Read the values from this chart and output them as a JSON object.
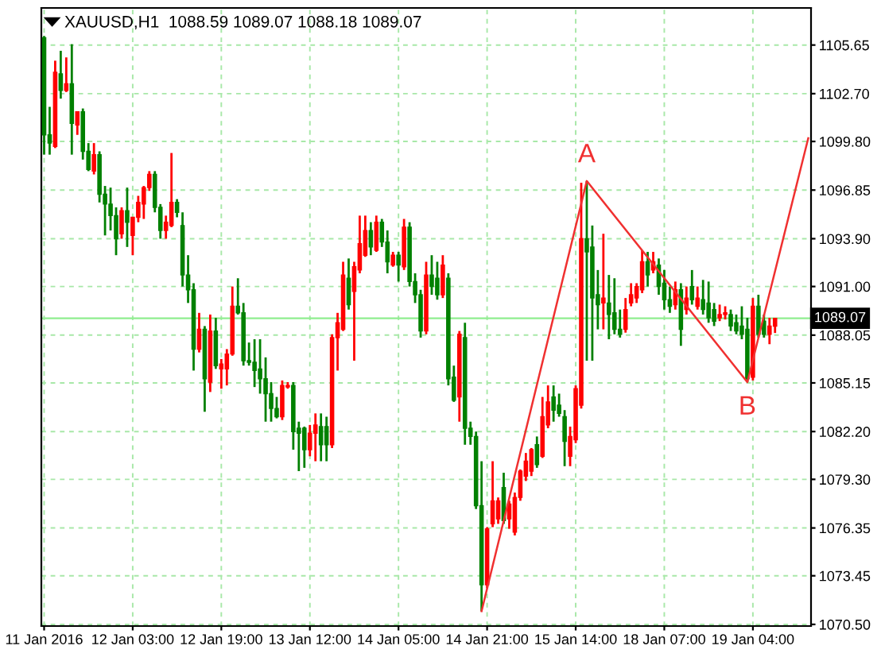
{
  "chart_data": {
    "type": "candlestick",
    "title": "XAUUSD,H1  1088.59 1089.07 1088.18 1089.07",
    "categories": [
      "11 Jan 2016",
      null,
      null,
      null,
      null,
      null,
      null,
      null,
      null,
      null,
      null,
      null,
      null,
      null,
      null,
      null,
      "12 Jan 03:00",
      null,
      null,
      null,
      null,
      null,
      null,
      null,
      null,
      null,
      null,
      null,
      null,
      null,
      null,
      null,
      "12 Jan 19:00",
      null,
      null,
      null,
      null,
      null,
      null,
      null,
      null,
      null,
      null,
      null,
      null,
      null,
      null,
      null,
      "13 Jan 12:00",
      null,
      null,
      null,
      null,
      null,
      null,
      null,
      null,
      null,
      null,
      null,
      null,
      null,
      null,
      null,
      "14 Jan 05:00",
      null,
      null,
      null,
      null,
      null,
      null,
      null,
      null,
      null,
      null,
      null,
      null,
      null,
      null,
      null,
      "14 Jan 21:00",
      null,
      null,
      null,
      null,
      null,
      null,
      null,
      null,
      null,
      null,
      null,
      null,
      null,
      null,
      null,
      "15 Jan 14:00",
      null,
      null,
      null,
      null,
      null,
      null,
      null,
      null,
      null,
      null,
      null,
      null,
      null,
      null,
      null,
      "18 Jan 07:00",
      null,
      null,
      null,
      null,
      null,
      null,
      null,
      null,
      null,
      null,
      null,
      null,
      null,
      null,
      null,
      "19 Jan 04:00",
      null,
      null,
      null,
      null,
      null,
      null,
      null,
      null,
      null,
      null
    ],
    "series": [
      {
        "type": "candlestick",
        "ohlc": [
          [
            1106.1,
            1106.2,
            1099.0,
            1100.2
          ],
          [
            1100.2,
            1101.9,
            1099.0,
            1099.7
          ],
          [
            1099.5,
            1104.7,
            1099.4,
            1104.0
          ],
          [
            1103.9,
            1105.3,
            1102.4,
            1102.9
          ],
          [
            1102.9,
            1104.9,
            1102.8,
            1103.3
          ],
          [
            1103.3,
            1105.7,
            1099.0,
            1100.9
          ],
          [
            1100.8,
            1101.6,
            1100.2,
            1101.6
          ],
          [
            1101.6,
            1101.8,
            1098.7,
            1099.2
          ],
          [
            1099.2,
            1099.7,
            1098.0,
            1098.1
          ],
          [
            1098.0,
            1099.7,
            1097.8,
            1099.0
          ],
          [
            1099.0,
            1099.2,
            1096.1,
            1096.6
          ],
          [
            1096.6,
            1097.1,
            1094.1,
            1096.0
          ],
          [
            1096.0,
            1097.0,
            1094.4,
            1095.3
          ],
          [
            1095.3,
            1095.8,
            1092.9,
            1093.9
          ],
          [
            1094.2,
            1095.8,
            1093.9,
            1095.6
          ],
          [
            1095.6,
            1097.0,
            1093.4,
            1094.9
          ],
          [
            1094.1,
            1095.2,
            1092.9,
            1095.2
          ],
          [
            1095.2,
            1096.5,
            1094.9,
            1096.1
          ],
          [
            1096.0,
            1097.1,
            1095.1,
            1097.0
          ],
          [
            1097.0,
            1098.0,
            1096.8,
            1097.8
          ],
          [
            1097.8,
            1098.0,
            1095.5,
            1095.8
          ],
          [
            1095.8,
            1096.0,
            1093.9,
            1094.4
          ],
          [
            1094.4,
            1095.3,
            1093.9,
            1094.9
          ],
          [
            1094.7,
            1099.1,
            1094.6,
            1096.1
          ],
          [
            1096.1,
            1096.3,
            1095.2,
            1095.5
          ],
          [
            1094.7,
            1095.5,
            1091.0,
            1091.7
          ],
          [
            1091.7,
            1092.9,
            1090.0,
            1090.8
          ],
          [
            1090.8,
            1091.2,
            1085.9,
            1087.2
          ],
          [
            1087.2,
            1089.4,
            1087.0,
            1088.4
          ],
          [
            1088.4,
            1088.6,
            1083.4,
            1085.4
          ],
          [
            1085.2,
            1089.3,
            1084.6,
            1088.3
          ],
          [
            1088.3,
            1089.1,
            1086.0,
            1086.2
          ],
          [
            1086.0,
            1086.6,
            1084.8,
            1086.3
          ],
          [
            1086.0,
            1087.2,
            1085.0,
            1086.9
          ],
          [
            1086.9,
            1091.0,
            1086.8,
            1089.8
          ],
          [
            1089.8,
            1091.5,
            1089.3,
            1089.4
          ],
          [
            1089.4,
            1090.0,
            1086.2,
            1086.5
          ],
          [
            1086.5,
            1087.6,
            1086.2,
            1086.4
          ],
          [
            1086.4,
            1087.8,
            1084.9,
            1085.9
          ],
          [
            1086.0,
            1087.8,
            1084.5,
            1085.4
          ],
          [
            1085.4,
            1086.7,
            1082.8,
            1084.5
          ],
          [
            1084.5,
            1085.2,
            1082.8,
            1083.6
          ],
          [
            1083.6,
            1084.3,
            1083.0,
            1083.1
          ],
          [
            1083.1,
            1085.3,
            1082.9,
            1085.0
          ],
          [
            1084.9,
            1085.2,
            1084.8,
            1085.0
          ],
          [
            1085.0,
            1085.2,
            1081.1,
            1082.2
          ],
          [
            1082.4,
            1082.8,
            1079.8,
            1082.1
          ],
          [
            1082.4,
            1082.5,
            1080.0,
            1081.1
          ],
          [
            1081.1,
            1082.6,
            1080.7,
            1082.1
          ],
          [
            1082.1,
            1083.3,
            1080.4,
            1082.6
          ],
          [
            1082.5,
            1083.3,
            1080.4,
            1081.4
          ],
          [
            1082.5,
            1083.1,
            1080.4,
            1081.4
          ],
          [
            1081.4,
            1088.1,
            1081.2,
            1087.9
          ],
          [
            1087.9,
            1089.4,
            1085.9,
            1088.8
          ],
          [
            1088.4,
            1092.5,
            1088.3,
            1091.7
          ],
          [
            1091.5,
            1092.7,
            1089.6,
            1089.9
          ],
          [
            1090.7,
            1092.5,
            1086.5,
            1092.2
          ],
          [
            1092.0,
            1095.3,
            1091.8,
            1093.6
          ],
          [
            1092.9,
            1095.3,
            1092.8,
            1094.4
          ],
          [
            1094.4,
            1094.9,
            1092.9,
            1093.4
          ],
          [
            1093.2,
            1095.3,
            1093.1,
            1094.9
          ],
          [
            1094.9,
            1095.1,
            1093.4,
            1093.7
          ],
          [
            1093.7,
            1094.4,
            1091.8,
            1092.5
          ],
          [
            1092.3,
            1093.1,
            1092.2,
            1092.9
          ],
          [
            1092.9,
            1093.1,
            1091.3,
            1092.3
          ],
          [
            1092.2,
            1095.1,
            1092.0,
            1094.6
          ],
          [
            1094.6,
            1094.9,
            1091.0,
            1091.3
          ],
          [
            1091.3,
            1091.8,
            1090.0,
            1090.5
          ],
          [
            1090.5,
            1090.8,
            1087.9,
            1088.3
          ],
          [
            1088.3,
            1092.5,
            1088.1,
            1091.7
          ],
          [
            1091.7,
            1092.9,
            1090.5,
            1091.0
          ],
          [
            1091.5,
            1092.5,
            1090.2,
            1090.5
          ],
          [
            1090.5,
            1092.9,
            1090.3,
            1092.3
          ],
          [
            1091.5,
            1091.8,
            1085.0,
            1085.4
          ],
          [
            1085.5,
            1086.2,
            1084.0,
            1084.1
          ],
          [
            1084.3,
            1088.3,
            1082.8,
            1088.1
          ],
          [
            1087.9,
            1088.8,
            1081.4,
            1082.4
          ],
          [
            1082.4,
            1082.8,
            1081.4,
            1081.9
          ],
          [
            1081.9,
            1082.2,
            1077.5,
            1077.7
          ],
          [
            1077.7,
            1080.4,
            1071.3,
            1072.9
          ],
          [
            1072.9,
            1076.4,
            1072.7,
            1076.3
          ],
          [
            1076.6,
            1080.4,
            1076.4,
            1078.0
          ],
          [
            1076.9,
            1078.2,
            1076.6,
            1078.0
          ],
          [
            1078.8,
            1079.7,
            1076.6,
            1076.8
          ],
          [
            1076.9,
            1078.0,
            1076.3,
            1077.8
          ],
          [
            1076.1,
            1078.5,
            1075.9,
            1078.2
          ],
          [
            1078.2,
            1079.9,
            1078.0,
            1079.8
          ],
          [
            1079.5,
            1080.9,
            1079.2,
            1080.4
          ],
          [
            1079.8,
            1081.2,
            1079.5,
            1081.1
          ],
          [
            1081.4,
            1081.9,
            1080.0,
            1080.2
          ],
          [
            1080.7,
            1084.3,
            1080.6,
            1083.1
          ],
          [
            1082.6,
            1085.0,
            1082.4,
            1084.0
          ],
          [
            1084.3,
            1085.0,
            1082.8,
            1083.5
          ],
          [
            1083.8,
            1084.5,
            1083.1,
            1083.3
          ],
          [
            1083.1,
            1083.5,
            1080.1,
            1081.6
          ],
          [
            1080.7,
            1082.5,
            1080.1,
            1081.9
          ],
          [
            1081.7,
            1085.0,
            1081.5,
            1084.8
          ],
          [
            1083.8,
            1097.3,
            1083.6,
            1093.9
          ],
          [
            1093.9,
            1097.4,
            1086.5,
            1093.1
          ],
          [
            1093.4,
            1094.7,
            1086.5,
            1090.3
          ],
          [
            1090.5,
            1092.0,
            1088.4,
            1089.9
          ],
          [
            1090.0,
            1094.2,
            1088.4,
            1090.3
          ],
          [
            1090.0,
            1091.7,
            1087.8,
            1089.3
          ],
          [
            1089.4,
            1091.5,
            1088.1,
            1088.4
          ],
          [
            1088.4,
            1089.6,
            1087.9,
            1088.1
          ],
          [
            1088.4,
            1090.3,
            1088.2,
            1089.6
          ],
          [
            1090.0,
            1091.2,
            1089.8,
            1090.5
          ],
          [
            1090.3,
            1091.2,
            1090.0,
            1091.0
          ],
          [
            1090.8,
            1093.2,
            1090.6,
            1092.5
          ],
          [
            1092.5,
            1093.1,
            1091.0,
            1091.7
          ],
          [
            1092.0,
            1093.1,
            1091.8,
            1092.5
          ],
          [
            1092.3,
            1092.7,
            1090.5,
            1091.0
          ],
          [
            1091.2,
            1092.0,
            1089.6,
            1090.2
          ],
          [
            1090.2,
            1091.0,
            1089.4,
            1089.8
          ],
          [
            1089.9,
            1091.3,
            1089.6,
            1090.8
          ],
          [
            1090.8,
            1091.2,
            1087.4,
            1088.4
          ],
          [
            1089.6,
            1091.0,
            1089.3,
            1090.3
          ],
          [
            1091.0,
            1092.0,
            1089.9,
            1090.2
          ],
          [
            1089.8,
            1091.0,
            1089.6,
            1090.3
          ],
          [
            1090.2,
            1091.4,
            1089.3,
            1089.6
          ],
          [
            1090.0,
            1091.3,
            1088.8,
            1089.1
          ],
          [
            1089.6,
            1090.0,
            1088.6,
            1088.9
          ],
          [
            1089.1,
            1089.9,
            1088.9,
            1089.3
          ],
          [
            1089.3,
            1089.8,
            1089.0,
            1089.4
          ],
          [
            1089.3,
            1089.6,
            1088.3,
            1088.6
          ],
          [
            1088.8,
            1089.3,
            1088.1,
            1088.3
          ],
          [
            1088.6,
            1089.8,
            1087.8,
            1088.1
          ],
          [
            1088.4,
            1089.1,
            1085.2,
            1085.4
          ],
          [
            1085.5,
            1090.3,
            1085.3,
            1089.8
          ],
          [
            1089.8,
            1090.5,
            1087.9,
            1088.1
          ],
          [
            1088.9,
            1089.3,
            1087.9,
            1088.1
          ],
          [
            1088.1,
            1089.1,
            1087.5,
            1088.6
          ],
          [
            1088.59,
            1089.07,
            1088.18,
            1089.07
          ],
          null,
          null,
          null,
          null,
          null,
          null
        ],
        "colors": [
          "#008000",
          "#008000",
          "#ff0000",
          "#008000",
          "#ff0000",
          "#008000",
          "#ff0000",
          "#008000",
          "#008000",
          "#ff0000",
          "#008000",
          "#008000",
          "#008000",
          "#008000",
          "#ff0000",
          "#008000",
          "#ff0000",
          "#ff0000",
          "#ff0000",
          "#ff0000",
          "#008000",
          "#008000",
          "#ff0000",
          "#ff0000",
          "#008000",
          "#008000",
          "#008000",
          "#008000",
          "#ff0000",
          "#008000",
          "#ff0000",
          "#008000",
          "#ff0000",
          "#ff0000",
          "#ff0000",
          "#008000",
          "#008000",
          "#008000",
          "#008000",
          "#008000",
          "#008000",
          "#008000",
          "#008000",
          "#ff0000",
          "#ff0000",
          "#008000",
          "#008000",
          "#008000",
          "#ff0000",
          "#ff0000",
          "#008000",
          "#008000",
          "#ff0000",
          "#ff0000",
          "#ff0000",
          "#008000",
          "#ff0000",
          "#ff0000",
          "#ff0000",
          "#008000",
          "#ff0000",
          "#008000",
          "#008000",
          "#ff0000",
          "#008000",
          "#ff0000",
          "#008000",
          "#008000",
          "#008000",
          "#ff0000",
          "#008000",
          "#008000",
          "#ff0000",
          "#008000",
          "#008000",
          "#ff0000",
          "#008000",
          "#008000",
          "#008000",
          "#008000",
          "#ff0000",
          "#ff0000",
          "#ff0000",
          "#008000",
          "#ff0000",
          "#ff0000",
          "#ff0000",
          "#ff0000",
          "#ff0000",
          "#008000",
          "#ff0000",
          "#ff0000",
          "#008000",
          "#008000",
          "#008000",
          "#ff0000",
          "#ff0000",
          "#ff0000",
          "#008000",
          "#008000",
          "#008000",
          "#ff0000",
          "#008000",
          "#008000",
          "#008000",
          "#ff0000",
          "#ff0000",
          "#ff0000",
          "#ff0000",
          "#008000",
          "#ff0000",
          "#008000",
          "#008000",
          "#008000",
          "#ff0000",
          "#008000",
          "#ff0000",
          "#008000",
          "#ff0000",
          "#008000",
          "#008000",
          "#008000",
          "#ff0000",
          "#ff0000",
          "#008000",
          "#008000",
          "#008000",
          "#008000",
          "#ff0000",
          "#008000",
          "#008000",
          "#ff0000",
          "#ff0000",
          null,
          null,
          null,
          null,
          null,
          null
        ]
      },
      {
        "type": "line",
        "color": "#f03030",
        "values": [
          null,
          null,
          null,
          null,
          null,
          null,
          null,
          null,
          null,
          null,
          null,
          null,
          null,
          null,
          null,
          null,
          null,
          null,
          null,
          null,
          null,
          null,
          null,
          null,
          null,
          null,
          null,
          null,
          null,
          null,
          null,
          null,
          null,
          null,
          null,
          null,
          null,
          null,
          null,
          null,
          null,
          null,
          null,
          null,
          null,
          null,
          null,
          null,
          null,
          null,
          null,
          null,
          null,
          null,
          null,
          null,
          null,
          null,
          null,
          null,
          null,
          null,
          null,
          null,
          null,
          null,
          null,
          null,
          null,
          null,
          null,
          null,
          null,
          null,
          null,
          null,
          null,
          null,
          null,
          1071.3,
          null,
          null,
          null,
          null,
          null,
          null,
          null,
          null,
          null,
          null,
          null,
          null,
          null,
          null,
          null,
          null,
          null,
          null,
          1097.4,
          null,
          null,
          null,
          null,
          null,
          null,
          null,
          null,
          null,
          null,
          null,
          null,
          null,
          null,
          null,
          null,
          null,
          null,
          null,
          null,
          null,
          null,
          null,
          null,
          null,
          null,
          null,
          null,
          1085.2,
          null,
          null,
          null,
          null,
          null,
          null,
          null,
          null,
          null,
          null,
          1100.0
        ],
        "value_labels": [
          null,
          null,
          null,
          null,
          null,
          null,
          null,
          null,
          null,
          null,
          null,
          null,
          null,
          null,
          null,
          null,
          null,
          null,
          null,
          null,
          null,
          null,
          null,
          null,
          null,
          null,
          null,
          null,
          null,
          null,
          null,
          null,
          null,
          null,
          null,
          null,
          null,
          null,
          null,
          null,
          null,
          null,
          null,
          null,
          null,
          null,
          null,
          null,
          null,
          null,
          null,
          null,
          null,
          null,
          null,
          null,
          null,
          null,
          null,
          null,
          null,
          null,
          null,
          null,
          null,
          null,
          null,
          null,
          null,
          null,
          null,
          null,
          null,
          null,
          null,
          null,
          null,
          null,
          null,
          null,
          null,
          null,
          null,
          null,
          null,
          null,
          null,
          null,
          null,
          null,
          null,
          null,
          null,
          null,
          null,
          null,
          null,
          null,
          "A",
          null,
          null,
          null,
          null,
          null,
          null,
          null,
          null,
          null,
          null,
          null,
          null,
          null,
          null,
          null,
          null,
          null,
          null,
          null,
          null,
          null,
          null,
          null,
          null,
          null,
          null,
          null,
          null,
          "B",
          null,
          null,
          null,
          null,
          null,
          null,
          null,
          null,
          null,
          null,
          null
        ]
      }
    ],
    "ylim": [
      1070.4,
      1107.9
    ],
    "yticks": [
      {
        "value": 1070.5,
        "label": "1070.50"
      },
      {
        "value": 1073.45,
        "label": "1073.45"
      },
      {
        "value": 1076.35,
        "label": "1076.35"
      },
      {
        "value": 1079.3,
        "label": "1079.30"
      },
      {
        "value": 1082.2,
        "label": "1082.20"
      },
      {
        "value": 1085.15,
        "label": "1085.15"
      },
      {
        "value": 1088.05,
        "label": "1088.05"
      },
      {
        "value": 1091.0,
        "label": "1091.00"
      },
      {
        "value": 1093.9,
        "label": "1093.90"
      },
      {
        "value": 1096.85,
        "label": "1096.85"
      },
      {
        "value": 1099.8,
        "label": "1099.80"
      },
      {
        "value": 1102.7,
        "label": "1102.70"
      },
      {
        "value": 1105.65,
        "label": "1105.65"
      }
    ],
    "ref_lines": [
      {
        "axis": "y",
        "value": 1089.07,
        "label": "1089.07",
        "color": "#90ee90"
      }
    ],
    "grid": true
  }
}
